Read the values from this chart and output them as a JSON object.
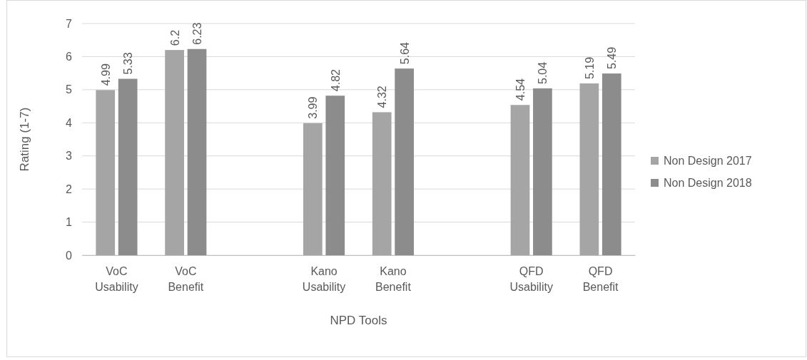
{
  "chart_data": {
    "type": "bar",
    "xlabel": "NPD Tools",
    "ylabel": "Rating (1-7)",
    "categories": [
      "VoC Usability",
      "VoC Benefit",
      null,
      "Kano Usability",
      "Kano Benefit",
      null,
      "QFD Usability",
      "QFD Benefit"
    ],
    "series": [
      {
        "name": "Non Design 2017",
        "color": "#a5a5a5",
        "values": [
          4.99,
          6.2,
          null,
          3.99,
          4.32,
          null,
          4.54,
          5.19
        ]
      },
      {
        "name": "Non Design 2018",
        "color": "#8c8c8c",
        "values": [
          5.33,
          6.23,
          null,
          4.82,
          5.64,
          null,
          5.04,
          5.49
        ]
      }
    ],
    "ylim": [
      0,
      7
    ],
    "yticks": [
      0,
      1,
      2,
      3,
      4,
      5,
      6,
      7
    ],
    "grid": "y",
    "legend": "right",
    "data_labels": true
  }
}
